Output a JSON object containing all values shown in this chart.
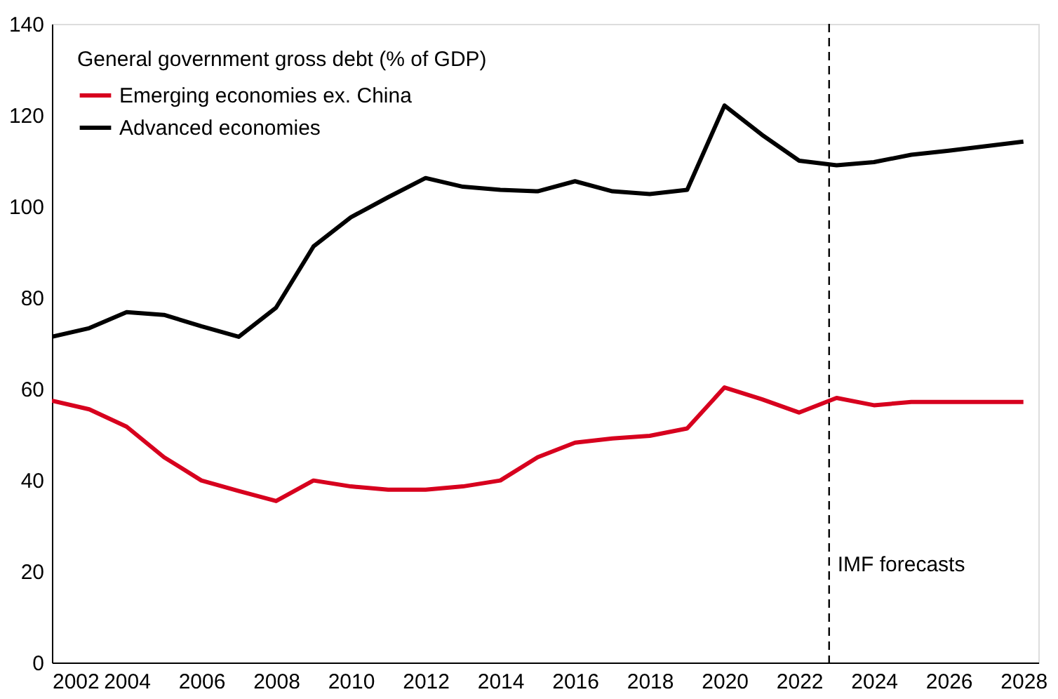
{
  "chart_data": {
    "type": "line",
    "legend_title": "General government gross debt (% of GDP)",
    "x": [
      2002,
      2003,
      2004,
      2005,
      2006,
      2007,
      2008,
      2009,
      2010,
      2011,
      2012,
      2013,
      2014,
      2015,
      2016,
      2017,
      2018,
      2019,
      2020,
      2021,
      2022,
      2023,
      2024,
      2025,
      2026,
      2027,
      2028
    ],
    "series": [
      {
        "name": "Emerging economies ex. China",
        "color": "#d7001e",
        "values": [
          57.4,
          55.5,
          51.7,
          45,
          39.9,
          37.6,
          35.4,
          39.9,
          38.6,
          37.9,
          37.9,
          38.6,
          39.9,
          45,
          48.2,
          49.1,
          49.7,
          51.3,
          60.3,
          57.7,
          54.8,
          58,
          56.4,
          57.1,
          57.1,
          57.1,
          57.1
        ]
      },
      {
        "name": "Advanced economies",
        "color": "#000000",
        "values": [
          71.4,
          73.3,
          76.8,
          76.2,
          73.7,
          71.4,
          77.8,
          91.2,
          97.6,
          102,
          106.2,
          104.3,
          103.6,
          103.3,
          105.5,
          103.3,
          102.7,
          103.6,
          122.1,
          115.7,
          110,
          109,
          109.7,
          111.3,
          112.2,
          113.2,
          114.2
        ]
      }
    ],
    "xlim": [
      2002,
      2028.4
    ],
    "xticks": [
      2002,
      2004,
      2006,
      2008,
      2010,
      2012,
      2014,
      2016,
      2018,
      2020,
      2022,
      2024,
      2026,
      2028
    ],
    "ylim": [
      0,
      140
    ],
    "yticks": [
      0,
      20,
      40,
      60,
      80,
      100,
      120,
      140
    ],
    "ref_lines": [
      {
        "axis": "x",
        "value": 2022.8,
        "label": "IMF forecasts",
        "line_style": "dashed",
        "color": "#000000"
      }
    ],
    "grid": false,
    "legend": "top left",
    "line_style": "solid",
    "marker": "none"
  }
}
